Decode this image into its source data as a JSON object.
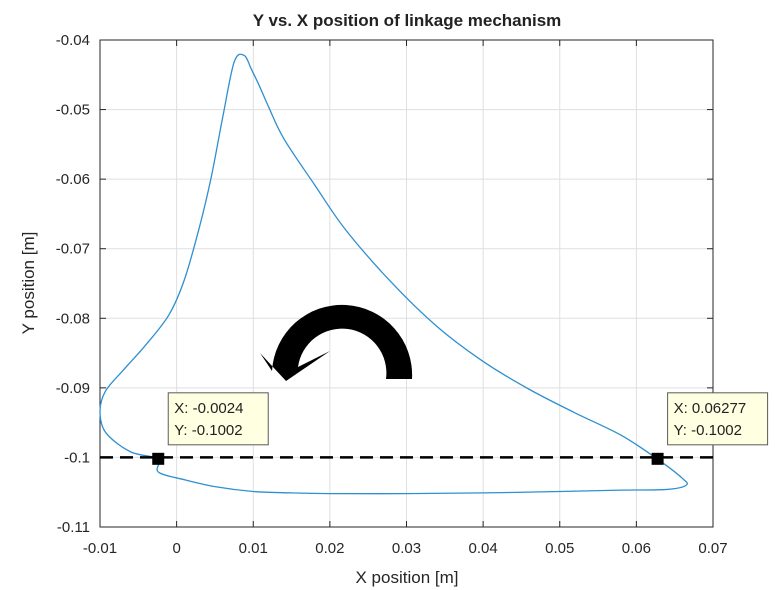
{
  "chart_data": {
    "type": "line",
    "title": "Y vs. X position of linkage mechanism",
    "xlabel": "X position [m]",
    "ylabel": "Y position [m]",
    "xlim": [
      -0.01,
      0.07
    ],
    "ylim": [
      -0.11,
      -0.04
    ],
    "xticks": [
      "-0.01",
      "0",
      "0.01",
      "0.02",
      "0.03",
      "0.04",
      "0.05",
      "0.06",
      "0.07"
    ],
    "yticks": [
      "-0.04",
      "-0.05",
      "-0.06",
      "-0.07",
      "-0.08",
      "-0.09",
      "-0.1",
      "-0.11"
    ],
    "grid": true,
    "curve_color": "#2f8fd0",
    "series": [
      {
        "x": [
          -0.0024,
          0.001,
          0.005,
          0.01,
          0.015,
          0.02,
          0.03,
          0.04,
          0.05,
          0.058,
          0.064,
          0.0665,
          0.066,
          0.0627,
          0.058,
          0.052,
          0.046,
          0.04,
          0.034,
          0.028,
          0.022,
          0.018,
          0.014,
          0.012,
          0.0108,
          0.0098,
          0.0088,
          0.0075,
          0.006,
          0.0045,
          0.003,
          0.001,
          -0.001,
          -0.004,
          -0.007,
          -0.0093,
          -0.01,
          -0.0092,
          -0.006,
          -0.0024
        ],
        "y": [
          -0.1021,
          -0.1032,
          -0.1042,
          -0.1049,
          -0.1051,
          -0.1052,
          -0.1052,
          -0.1051,
          -0.1049,
          -0.1047,
          -0.1046,
          -0.104,
          -0.103,
          -0.1002,
          -0.0968,
          -0.0936,
          -0.0902,
          -0.0862,
          -0.0812,
          -0.0748,
          -0.0672,
          -0.0608,
          -0.0542,
          -0.0496,
          -0.0466,
          -0.0443,
          -0.0422,
          -0.0432,
          -0.0512,
          -0.0598,
          -0.0668,
          -0.0745,
          -0.0795,
          -0.0838,
          -0.0875,
          -0.0905,
          -0.0935,
          -0.0965,
          -0.0992,
          -0.1002
        ]
      }
    ],
    "reference_line": {
      "y": -0.1,
      "style": "dashed",
      "color": "#000000"
    },
    "datatips": [
      {
        "x": -0.0024,
        "y": -0.1002,
        "line1": "X: -0.0024",
        "line2": "Y: -0.1002"
      },
      {
        "x": 0.06277,
        "y": -0.1002,
        "line1": "X: 0.06277",
        "line2": "Y: -0.1002"
      }
    ],
    "annotation": {
      "type": "curved-arrow",
      "direction": "counterclockwise",
      "color": "#000000"
    }
  }
}
